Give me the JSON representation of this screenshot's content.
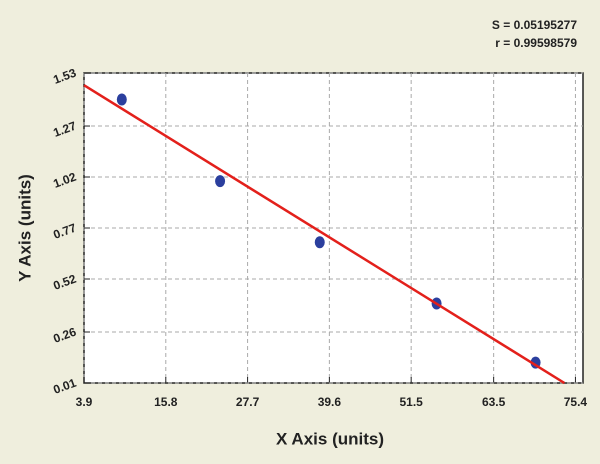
{
  "chart_data": {
    "type": "scatter",
    "annotations": [
      "S = 0.05195277",
      "r = 0.99598579"
    ],
    "x_label": "X Axis (units)",
    "y_label": "Y Axis (units)",
    "series": [
      {
        "kind": "points",
        "color": "#2b3f9e",
        "x": [
          9.4,
          23.7,
          38.2,
          55.2,
          69.6
        ],
        "values": [
          1.4,
          1.0,
          0.7,
          0.4,
          0.11
        ]
      },
      {
        "kind": "line",
        "color": "#e3201b",
        "x": [
          3.9,
          73.8
        ],
        "values": [
          1.47,
          0.01
        ]
      }
    ],
    "xlim": [
      3.9,
      76.5
    ],
    "xticks": [
      3.9,
      15.8,
      27.7,
      39.6,
      51.5,
      63.5,
      75.4
    ],
    "ylim": [
      0.01,
      1.53
    ],
    "yticks": [
      0.01,
      0.26,
      0.52,
      0.77,
      1.02,
      1.27,
      1.53
    ],
    "grid": true
  }
}
